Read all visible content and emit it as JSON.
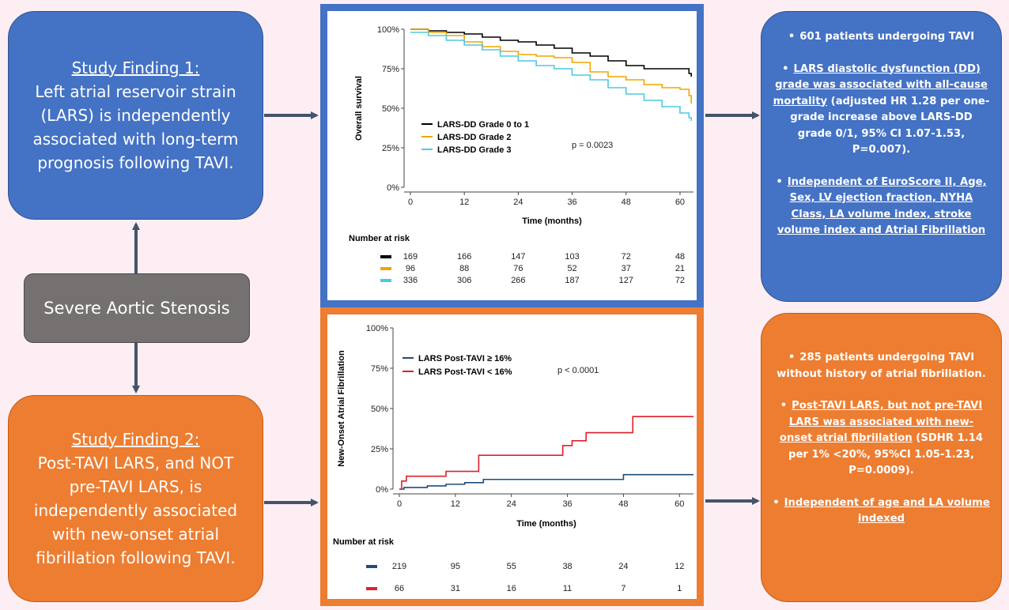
{
  "finding1": {
    "heading": "Study Finding 1:",
    "text": "Left atrial reservoir strain (LARS) is independently associated with long-term prognosis following TAVI."
  },
  "center": {
    "label": "Severe Aortic Stenosis"
  },
  "finding2": {
    "heading": "Study Finding 2:",
    "text": "Post-TAVI LARS, and NOT pre-TAVI LARS, is independently associated with new-onset atrial fibrillation following TAVI."
  },
  "right1": {
    "b1": "601 patients undergoing TAVI",
    "b2_u": "LARS diastolic dysfunction (DD) grade was associated with all-cause mortality",
    "b2_rest": " (adjusted HR 1.28 per one-grade increase above LARS-DD grade 0/1, 95% CI 1.07-1.53, P=0.007).",
    "b3": "Independent of EuroScore II, Age, Sex, LV ejection fraction, NYHA Class, LA volume index, stroke volume index and Atrial Fibrillation"
  },
  "right2": {
    "b1": "285 patients undergoing TAVI without history of atrial fibrillation.",
    "b2_u": "Post-TAVI LARS, but not pre-TAVI LARS was associated with new-onset atrial fibrillation",
    "b2_rest": " (SDHR 1.14 per 1% <20%, 95%CI 1.05-1.23, P=0.0009).",
    "b3": "Independent of age and LA volume indexed"
  },
  "chart_data": [
    {
      "type": "line",
      "xlabel": "Time (months)",
      "ylabel": "Overall survival",
      "xlim": [
        0,
        63
      ],
      "ylim": [
        0,
        100
      ],
      "xticks": [
        0,
        12,
        24,
        36,
        48,
        60
      ],
      "yticks": [
        "0%",
        "25%",
        "50%",
        "75%",
        "100%"
      ],
      "annotation": "p = 0.0023",
      "series": [
        {
          "name": "LARS-DD Grade 0 to 1",
          "color": "#000000",
          "x": [
            0,
            4,
            8,
            12,
            16,
            20,
            24,
            28,
            32,
            36,
            40,
            44,
            48,
            52,
            56,
            60,
            62,
            62.5
          ],
          "y": [
            100,
            99,
            98,
            97,
            95,
            93,
            92,
            90,
            88,
            85,
            83,
            80,
            77,
            75,
            75,
            75,
            72,
            70
          ]
        },
        {
          "name": "LARS-DD Grade 2",
          "color": "#f0a500",
          "x": [
            0,
            4,
            8,
            12,
            16,
            20,
            24,
            28,
            32,
            36,
            40,
            44,
            48,
            52,
            56,
            60,
            62,
            62.5
          ],
          "y": [
            100,
            98,
            96,
            92,
            89,
            86,
            84,
            83,
            82,
            79,
            73,
            70,
            68,
            65,
            63,
            62,
            58,
            53
          ]
        },
        {
          "name": "LARS-DD Grade 3",
          "color": "#4dc8e0",
          "x": [
            0,
            4,
            8,
            12,
            16,
            20,
            24,
            28,
            32,
            36,
            40,
            44,
            48,
            52,
            56,
            60,
            62,
            62.5
          ],
          "y": [
            98,
            96,
            93,
            90,
            87,
            83,
            80,
            77,
            75,
            71,
            68,
            63,
            59,
            55,
            51,
            47,
            44,
            42
          ]
        }
      ],
      "risk_table": {
        "title": "Number at risk",
        "rows": [
          {
            "color": "#000000",
            "values": [
              "169",
              "166",
              "147",
              "103",
              "72",
              "48"
            ]
          },
          {
            "color": "#f0a500",
            "values": [
              "96",
              "88",
              "76",
              "52",
              "37",
              "21"
            ]
          },
          {
            "color": "#4dc8e0",
            "values": [
              "336",
              "306",
              "266",
              "187",
              "127",
              "72"
            ]
          }
        ]
      }
    },
    {
      "type": "line",
      "xlabel": "Time (months)",
      "ylabel": "New-Onset Atrial Fibrillation",
      "xlim": [
        0,
        63
      ],
      "ylim": [
        0,
        100
      ],
      "xticks": [
        0,
        12,
        24,
        36,
        48,
        60
      ],
      "yticks": [
        "0%",
        "25%",
        "50%",
        "75%",
        "100%"
      ],
      "annotation": "p < 0.0001",
      "series": [
        {
          "name": "LARS Post-TAVI ≥ 16%",
          "color": "#1f4e79",
          "x": [
            0,
            1,
            6,
            10,
            14,
            18,
            48,
            63
          ],
          "y": [
            0,
            1,
            2,
            3,
            4,
            6,
            9,
            9
          ]
        },
        {
          "name": "LARS Post-TAVI < 16%",
          "color": "#e0202a",
          "x": [
            0,
            0.5,
            1.5,
            10,
            17,
            35,
            37,
            40,
            50,
            63
          ],
          "y": [
            0,
            5,
            8,
            11,
            21,
            27,
            30,
            35,
            45,
            45
          ]
        }
      ],
      "risk_table": {
        "title": "Number at risk",
        "rows": [
          {
            "color": "#1f4e79",
            "values": [
              "219",
              "95",
              "55",
              "38",
              "24",
              "12"
            ]
          },
          {
            "color": "#e0202a",
            "values": [
              "66",
              "31",
              "16",
              "11",
              "7",
              "1"
            ]
          }
        ]
      }
    }
  ]
}
